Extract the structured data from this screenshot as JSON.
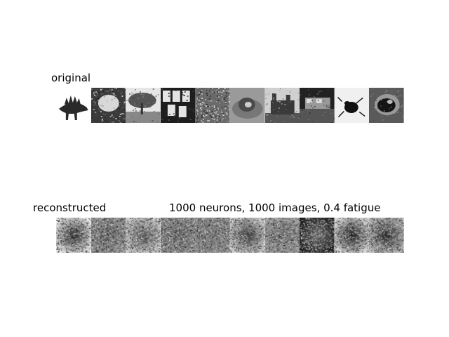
{
  "figure": {
    "original_label": "original",
    "reconstructed_label": "reconstructed",
    "params_label": "1000 neurons, 1000 images, 0.4 fatigue"
  },
  "original_tiles": [
    {
      "subject": "stegosaurus-silhouette",
      "bg": "#ffffff",
      "tone": "#2a2a2a"
    },
    {
      "subject": "bright-blob-dark-frame",
      "bg": "#3a3a3a",
      "tone": "#d8d8d8"
    },
    {
      "subject": "tree-landscape",
      "bg": "#e6e6e6",
      "tone": "#555555"
    },
    {
      "subject": "letter-tiles",
      "bg": "#1e1e1e",
      "tone": "#e4e4e4"
    },
    {
      "subject": "foliage",
      "bg": "#6a6a6a",
      "tone": "#b0b0b0"
    },
    {
      "subject": "animal-on-cushion",
      "bg": "#9a9a9a",
      "tone": "#4a4a4a"
    },
    {
      "subject": "castle-building",
      "bg": "#d0d0d0",
      "tone": "#3a3a3a"
    },
    {
      "subject": "street-scene",
      "bg": "#222222",
      "tone": "#9a9a9a"
    },
    {
      "subject": "beetle",
      "bg": "#f0f0f0",
      "tone": "#111111"
    },
    {
      "subject": "curled-creature",
      "bg": "#5a5a5a",
      "tone": "#151515"
    }
  ],
  "reconstructed_tiles": [
    {
      "name": "recon-1",
      "center": "#2a2a2a",
      "edge": "#e8e8e8"
    },
    {
      "name": "recon-2",
      "center": "#6a6a6a",
      "edge": "#8c8c8c"
    },
    {
      "name": "recon-3",
      "center": "#5a5a5a",
      "edge": "#c8c8c8"
    },
    {
      "name": "recon-4",
      "center": "#6a6a6a",
      "edge": "#8a8a8a"
    },
    {
      "name": "recon-5",
      "center": "#7a7a7a",
      "edge": "#8a8a8a"
    },
    {
      "name": "recon-6",
      "center": "#3a3a3a",
      "edge": "#cacaca"
    },
    {
      "name": "recon-7",
      "center": "#6a6a6a",
      "edge": "#9a9a9a"
    },
    {
      "name": "recon-8",
      "center": "#7a7a7a",
      "edge": "#1c1c1c"
    },
    {
      "name": "recon-9",
      "center": "#1c1c1c",
      "edge": "#dadada"
    },
    {
      "name": "recon-10",
      "center": "#252525",
      "edge": "#b8b8b8"
    }
  ]
}
